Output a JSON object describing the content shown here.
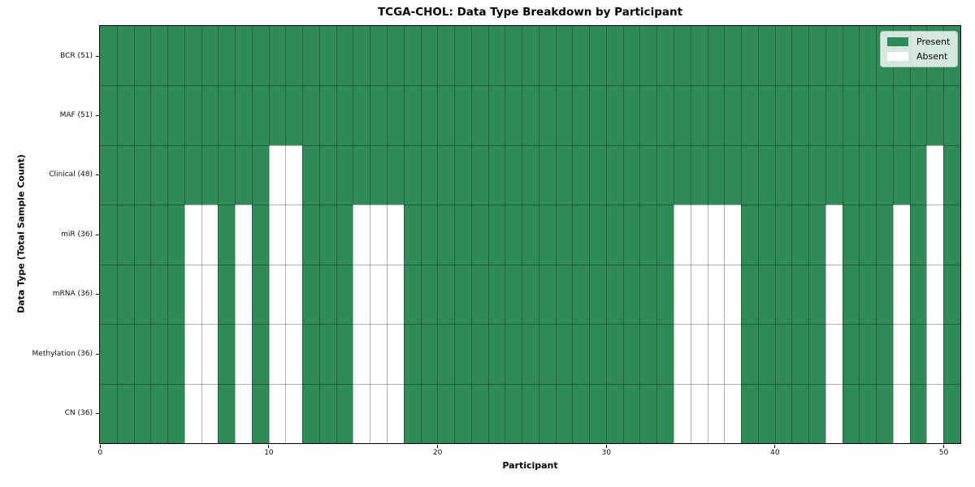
{
  "chart_data": {
    "type": "heatmap",
    "title": "TCGA-CHOL: Data Type Breakdown by Participant",
    "xlabel": "Participant",
    "ylabel": "Data Type (Total Sample Count)",
    "n_participants": 51,
    "x_ticks": [
      0,
      10,
      20,
      30,
      40,
      50
    ],
    "grid": true,
    "legend_position": "upper right",
    "legend": [
      {
        "label": "Present",
        "color": "#2e8b57"
      },
      {
        "label": "Absent",
        "color": "#ffffff"
      }
    ],
    "colors": {
      "present": "#2e8b57",
      "absent": "#ffffff",
      "gridline": "rgba(0,0,0,0.30)"
    },
    "rows": [
      {
        "label": "BCR (51)",
        "total": 51,
        "absent_participants": []
      },
      {
        "label": "MAF (51)",
        "total": 51,
        "absent_participants": []
      },
      {
        "label": "Clinical (48)",
        "total": 48,
        "absent_participants": [
          10,
          11,
          49
        ]
      },
      {
        "label": "miR (36)",
        "total": 36,
        "absent_participants": [
          5,
          6,
          8,
          10,
          11,
          15,
          16,
          17,
          34,
          35,
          36,
          37,
          43,
          47,
          49
        ]
      },
      {
        "label": "mRNA (36)",
        "total": 36,
        "absent_participants": [
          5,
          6,
          8,
          10,
          11,
          15,
          16,
          17,
          34,
          35,
          36,
          37,
          43,
          47,
          49
        ]
      },
      {
        "label": "Methylation (36)",
        "total": 36,
        "absent_participants": [
          5,
          6,
          8,
          10,
          11,
          15,
          16,
          17,
          34,
          35,
          36,
          37,
          43,
          47,
          49
        ]
      },
      {
        "label": "CN (36)",
        "total": 36,
        "absent_participants": [
          5,
          6,
          8,
          10,
          11,
          15,
          16,
          17,
          34,
          35,
          36,
          37,
          43,
          47,
          49
        ]
      }
    ]
  }
}
